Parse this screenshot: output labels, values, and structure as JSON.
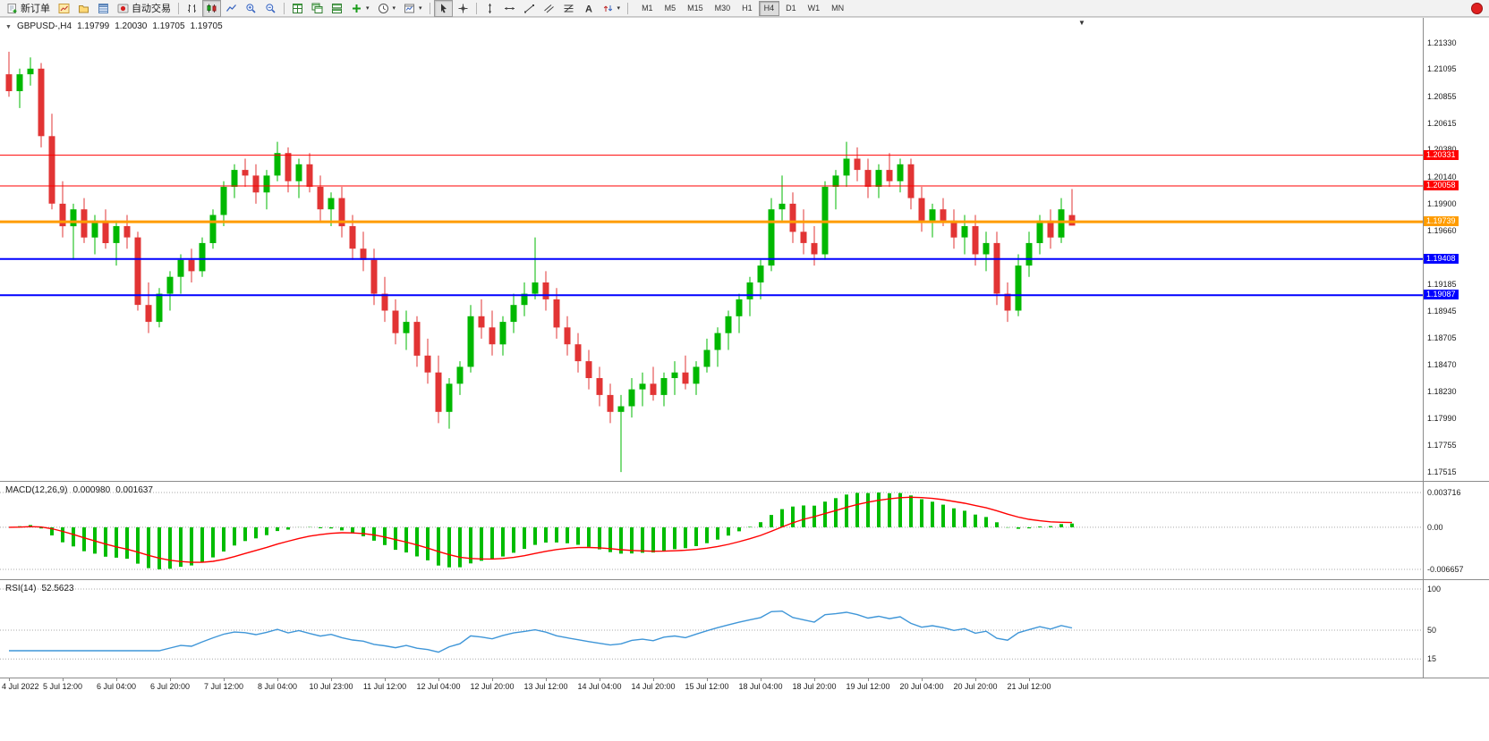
{
  "toolbar": {
    "new_order_label": "新订单",
    "autotrading_label": "自动交易",
    "timeframes": [
      "M1",
      "M5",
      "M15",
      "M30",
      "H1",
      "H4",
      "D1",
      "W1",
      "MN"
    ],
    "active_timeframe": "H4",
    "icon_names": [
      "new-order-icon",
      "chart-window-icon",
      "profiles-icon",
      "market-watch-icon",
      "autotrading-icon",
      "bar-chart-icon",
      "candlestick-chart-icon",
      "line-chart-icon",
      "zoom-in-icon",
      "zoom-out-icon",
      "tile-windows-icon",
      "cascade-windows-icon",
      "arrange-windows-icon",
      "indicators-icon",
      "periods-icon",
      "templates-icon",
      "cursor-icon",
      "crosshair-icon",
      "vertical-line-icon",
      "horizontal-line-icon",
      "trendline-icon",
      "channel-icon",
      "fibonacci-icon",
      "text-icon",
      "arrows-icon",
      "notification-badge"
    ]
  },
  "chart": {
    "symbol_period": "GBPUSD-,H4",
    "open": "1.19799",
    "high": "1.20030",
    "low": "1.19705",
    "close": "1.19705"
  },
  "macd": {
    "label": "MACD(12,26,9)",
    "main_value": "0.000980",
    "signal_value": "0.001637",
    "axis_labels": [
      "0.003716",
      "0.00",
      "-0.006657"
    ]
  },
  "rsi": {
    "label": "RSI(14)",
    "value": "52.5623",
    "period": 14,
    "axis_labels": [
      "100",
      "50",
      "15"
    ]
  },
  "chart_data": {
    "type": "candlestick",
    "symbol": "GBPUSD-",
    "timeframe": "H4",
    "scale": {
      "top": 1.2144,
      "bottom": 1.175
    },
    "price_axis_labels": [
      "1.21330",
      "1.21095",
      "1.20855",
      "1.20615",
      "1.20380",
      "1.20140",
      "1.19900",
      "1.19660",
      "1.19425",
      "1.19185",
      "1.18945",
      "1.18705",
      "1.18470",
      "1.18230",
      "1.17990",
      "1.17755",
      "1.17515"
    ],
    "hlines": [
      {
        "price": 1.20331,
        "color": "#ff0000",
        "width": 1,
        "label": "1.20331"
      },
      {
        "price": 1.20058,
        "color": "#ff0000",
        "width": 1,
        "label": "1.20058"
      },
      {
        "price": 1.19739,
        "color": "#ff9c00",
        "width": 3,
        "label": "1.19739"
      },
      {
        "price": 1.19408,
        "color": "#0000ff",
        "width": 2,
        "label": "1.19408"
      },
      {
        "price": 1.19087,
        "color": "#0000ff",
        "width": 2,
        "label": "1.19087"
      }
    ],
    "time_labels": [
      "4 Jul 2022",
      "5 Jul 12:00",
      "6 Jul 04:00",
      "6 Jul 20:00",
      "7 Jul 12:00",
      "8 Jul 04:00",
      "10 Jul 23:00",
      "11 Jul 12:00",
      "12 Jul 04:00",
      "12 Jul 20:00",
      "13 Jul 12:00",
      "14 Jul 04:00",
      "14 Jul 20:00",
      "15 Jul 12:00",
      "18 Jul 04:00",
      "18 Jul 20:00",
      "19 Jul 12:00",
      "20 Jul 04:00",
      "20 Jul 20:00",
      "21 Jul 12:00"
    ],
    "colors": {
      "up": "#00b800",
      "down": "#e23434",
      "macd_hist": "#00bc00",
      "macd_signal": "#ff0000",
      "rsi_line": "#3f96d8"
    },
    "candles": [
      [
        1.2105,
        1.2125,
        1.2085,
        1.209
      ],
      [
        1.209,
        1.211,
        1.2075,
        1.2105
      ],
      [
        1.2105,
        1.212,
        1.2095,
        1.211
      ],
      [
        1.211,
        1.2115,
        1.204,
        1.205
      ],
      [
        1.205,
        1.207,
        1.1985,
        1.199
      ],
      [
        1.199,
        1.201,
        1.196,
        1.197
      ],
      [
        1.197,
        1.199,
        1.194,
        1.1985
      ],
      [
        1.1985,
        1.1995,
        1.1955,
        1.196
      ],
      [
        1.196,
        1.198,
        1.1945,
        1.1975
      ],
      [
        1.1975,
        1.1985,
        1.195,
        1.1955
      ],
      [
        1.1955,
        1.1975,
        1.1935,
        1.197
      ],
      [
        1.197,
        1.198,
        1.195,
        1.196
      ],
      [
        1.196,
        1.1965,
        1.1895,
        1.19
      ],
      [
        1.19,
        1.192,
        1.1875,
        1.1885
      ],
      [
        1.1885,
        1.1915,
        1.188,
        1.191
      ],
      [
        1.191,
        1.193,
        1.1895,
        1.1925
      ],
      [
        1.1925,
        1.1945,
        1.191,
        1.194
      ],
      [
        1.194,
        1.195,
        1.192,
        1.193
      ],
      [
        1.193,
        1.196,
        1.1925,
        1.1955
      ],
      [
        1.1955,
        1.1985,
        1.195,
        1.198
      ],
      [
        1.198,
        1.201,
        1.197,
        1.2005
      ],
      [
        1.2005,
        1.2025,
        1.1995,
        1.202
      ],
      [
        1.202,
        1.203,
        1.2005,
        1.2015
      ],
      [
        1.2015,
        1.2025,
        1.199,
        1.2
      ],
      [
        1.2,
        1.202,
        1.1985,
        1.2015
      ],
      [
        1.2015,
        1.2045,
        1.201,
        1.2035
      ],
      [
        1.2035,
        1.204,
        1.2,
        1.201
      ],
      [
        1.201,
        1.203,
        1.1995,
        1.2025
      ],
      [
        1.2025,
        1.2035,
        1.2,
        1.2005
      ],
      [
        1.2005,
        1.2015,
        1.1975,
        1.1985
      ],
      [
        1.1985,
        1.2,
        1.197,
        1.1995
      ],
      [
        1.1995,
        1.2005,
        1.196,
        1.197
      ],
      [
        1.197,
        1.198,
        1.194,
        1.195
      ],
      [
        1.195,
        1.1965,
        1.193,
        1.194
      ],
      [
        1.194,
        1.195,
        1.19,
        1.191
      ],
      [
        1.191,
        1.1925,
        1.1885,
        1.1895
      ],
      [
        1.1895,
        1.1905,
        1.1865,
        1.1875
      ],
      [
        1.1875,
        1.1895,
        1.186,
        1.1885
      ],
      [
        1.1885,
        1.189,
        1.1845,
        1.1855
      ],
      [
        1.1855,
        1.187,
        1.183,
        1.184
      ],
      [
        1.184,
        1.1855,
        1.1795,
        1.1805
      ],
      [
        1.1805,
        1.1835,
        1.179,
        1.183
      ],
      [
        1.183,
        1.185,
        1.182,
        1.1845
      ],
      [
        1.1845,
        1.19,
        1.184,
        1.189
      ],
      [
        1.189,
        1.1905,
        1.187,
        1.188
      ],
      [
        1.188,
        1.1895,
        1.1855,
        1.1865
      ],
      [
        1.1865,
        1.189,
        1.1855,
        1.1885
      ],
      [
        1.1885,
        1.191,
        1.1875,
        1.19
      ],
      [
        1.19,
        1.192,
        1.189,
        1.191
      ],
      [
        1.191,
        1.196,
        1.1905,
        1.192
      ],
      [
        1.192,
        1.193,
        1.1895,
        1.1905
      ],
      [
        1.1905,
        1.1915,
        1.187,
        1.188
      ],
      [
        1.188,
        1.189,
        1.1855,
        1.1865
      ],
      [
        1.1865,
        1.1875,
        1.184,
        1.185
      ],
      [
        1.185,
        1.186,
        1.1825,
        1.1835
      ],
      [
        1.1835,
        1.1845,
        1.181,
        1.182
      ],
      [
        1.182,
        1.183,
        1.1795,
        1.1805
      ],
      [
        1.1805,
        1.182,
        1.17515,
        1.181
      ],
      [
        1.181,
        1.1835,
        1.18,
        1.1825
      ],
      [
        1.1825,
        1.184,
        1.181,
        1.183
      ],
      [
        1.183,
        1.1845,
        1.1815,
        1.182
      ],
      [
        1.182,
        1.184,
        1.181,
        1.1835
      ],
      [
        1.1835,
        1.185,
        1.182,
        1.184
      ],
      [
        1.184,
        1.1855,
        1.1825,
        1.183
      ],
      [
        1.183,
        1.185,
        1.182,
        1.1845
      ],
      [
        1.1845,
        1.187,
        1.184,
        1.186
      ],
      [
        1.186,
        1.188,
        1.1845,
        1.1875
      ],
      [
        1.1875,
        1.1895,
        1.186,
        1.189
      ],
      [
        1.189,
        1.191,
        1.1875,
        1.1905
      ],
      [
        1.1905,
        1.1925,
        1.189,
        1.192
      ],
      [
        1.192,
        1.194,
        1.1905,
        1.1935
      ],
      [
        1.1935,
        1.1995,
        1.193,
        1.1985
      ],
      [
        1.1985,
        1.2015,
        1.1975,
        1.199
      ],
      [
        1.199,
        1.2,
        1.1955,
        1.1965
      ],
      [
        1.1965,
        1.1985,
        1.1945,
        1.1955
      ],
      [
        1.1955,
        1.197,
        1.1935,
        1.1945
      ],
      [
        1.1945,
        1.201,
        1.194,
        1.2005
      ],
      [
        1.2005,
        1.202,
        1.1985,
        1.2015
      ],
      [
        1.2015,
        1.2045,
        1.2005,
        1.203
      ],
      [
        1.203,
        1.204,
        1.201,
        1.202
      ],
      [
        1.202,
        1.203,
        1.1995,
        1.2005
      ],
      [
        1.2005,
        1.2025,
        1.1995,
        1.202
      ],
      [
        1.202,
        1.2035,
        1.2005,
        1.201
      ],
      [
        1.201,
        1.203,
        1.2,
        1.2025
      ],
      [
        1.2025,
        1.203,
        1.1985,
        1.1995
      ],
      [
        1.1995,
        1.2005,
        1.1965,
        1.1975
      ],
      [
        1.1975,
        1.199,
        1.196,
        1.1985
      ],
      [
        1.1985,
        1.1995,
        1.197,
        1.1975
      ],
      [
        1.1975,
        1.1985,
        1.195,
        1.196
      ],
      [
        1.196,
        1.198,
        1.1945,
        1.197
      ],
      [
        1.197,
        1.198,
        1.1935,
        1.1945
      ],
      [
        1.1945,
        1.1965,
        1.193,
        1.1955
      ],
      [
        1.1955,
        1.1965,
        1.19,
        1.191
      ],
      [
        1.191,
        1.192,
        1.1885,
        1.1895
      ],
      [
        1.1895,
        1.1945,
        1.189,
        1.1935
      ],
      [
        1.1935,
        1.1965,
        1.1925,
        1.1955
      ],
      [
        1.1955,
        1.198,
        1.1945,
        1.1975
      ],
      [
        1.1975,
        1.1985,
        1.195,
        1.196
      ],
      [
        1.196,
        1.1995,
        1.1955,
        1.1985
      ],
      [
        1.19799,
        1.2003,
        1.19705,
        1.19705
      ]
    ],
    "indicators": {
      "macd": {
        "fast": 12,
        "slow": 26,
        "signal": 9
      },
      "rsi": {
        "period": 14
      }
    }
  }
}
